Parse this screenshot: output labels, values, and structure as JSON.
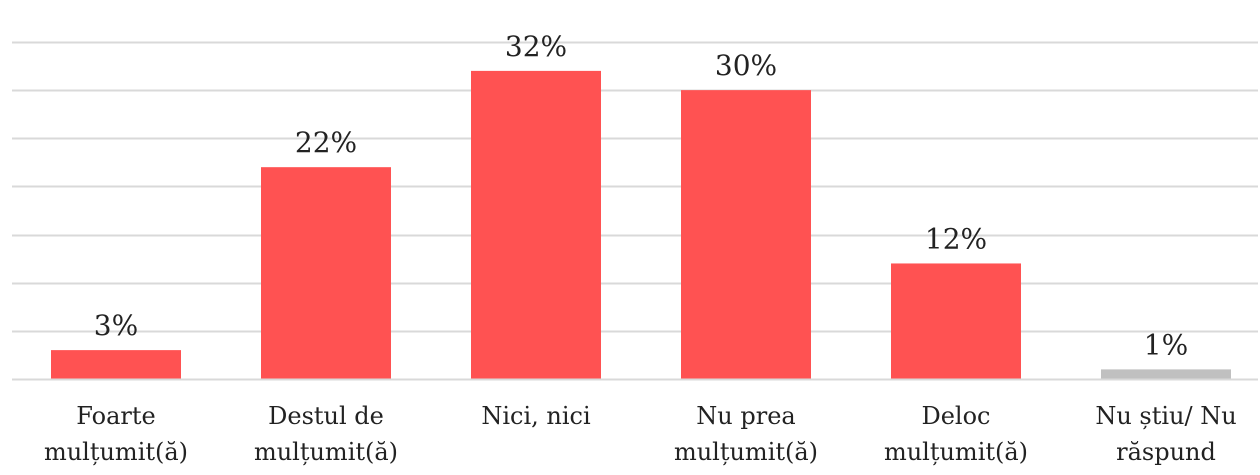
{
  "chart_data": {
    "type": "bar",
    "categories": [
      [
        "Foarte",
        "mulțumit(ă)"
      ],
      [
        "Destul de",
        "mulțumit(ă)"
      ],
      [
        "Nici, nici"
      ],
      [
        "Nu prea",
        "mulțumit(ă)"
      ],
      [
        "Deloc",
        "mulțumit(ă)"
      ],
      [
        "Nu știu/ Nu",
        "răspund"
      ]
    ],
    "values": [
      3,
      22,
      32,
      30,
      12,
      1
    ],
    "value_labels": [
      "3%",
      "22%",
      "32%",
      "30%",
      "12%",
      "1%"
    ],
    "bar_colors": [
      "#ff5252",
      "#ff5252",
      "#ff5252",
      "#ff5252",
      "#ff5252",
      "#c0c0c0"
    ],
    "grid_color": "#d9d9d9",
    "ylim": [
      0,
      35
    ],
    "y_grid_step": 5,
    "grid": true,
    "legend": "none"
  }
}
